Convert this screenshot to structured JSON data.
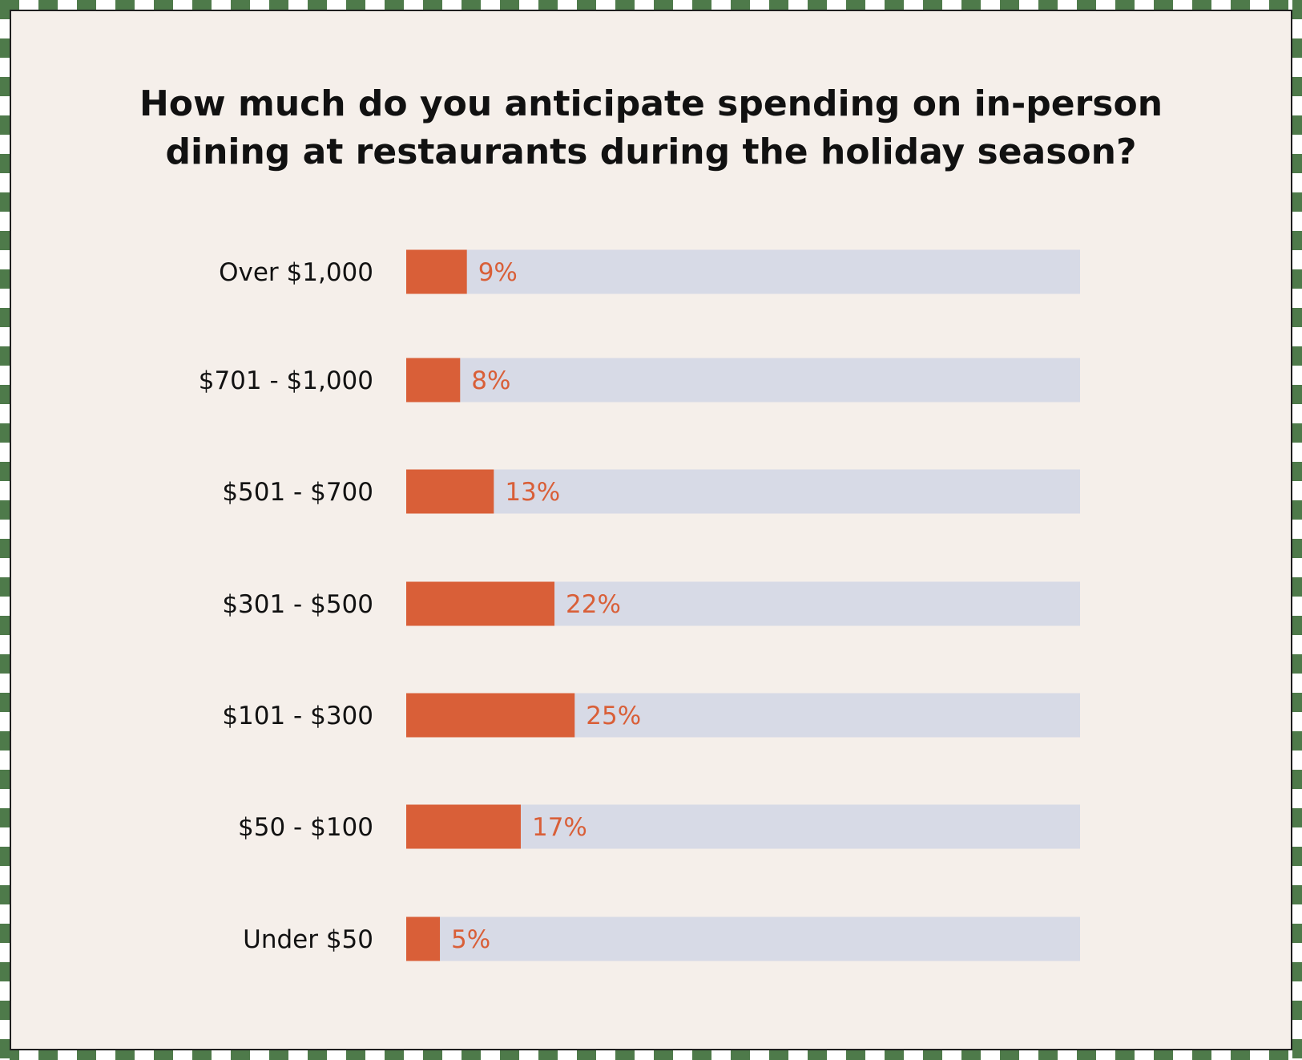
{
  "colors": {
    "bar": "#d95f38",
    "track": "#d7dae6",
    "background": "#f5efea",
    "border_green": "#4e7a4a"
  },
  "chart_data": {
    "type": "bar",
    "orientation": "horizontal",
    "title": "How much do you anticipate spending on in-person dining at restaurants during the holiday season?",
    "categories": [
      "Over $1,000",
      "$701 - $1,000",
      "$501 - $700",
      "$301 - $500",
      "$101 - $300",
      "$50 - $100",
      "Under $50"
    ],
    "values": [
      9,
      8,
      13,
      22,
      25,
      17,
      5
    ],
    "value_labels": [
      "9%",
      "8%",
      "13%",
      "22%",
      "25%",
      "17%",
      "5%"
    ],
    "xlim": [
      0,
      100
    ],
    "grid": false,
    "legend": false
  }
}
